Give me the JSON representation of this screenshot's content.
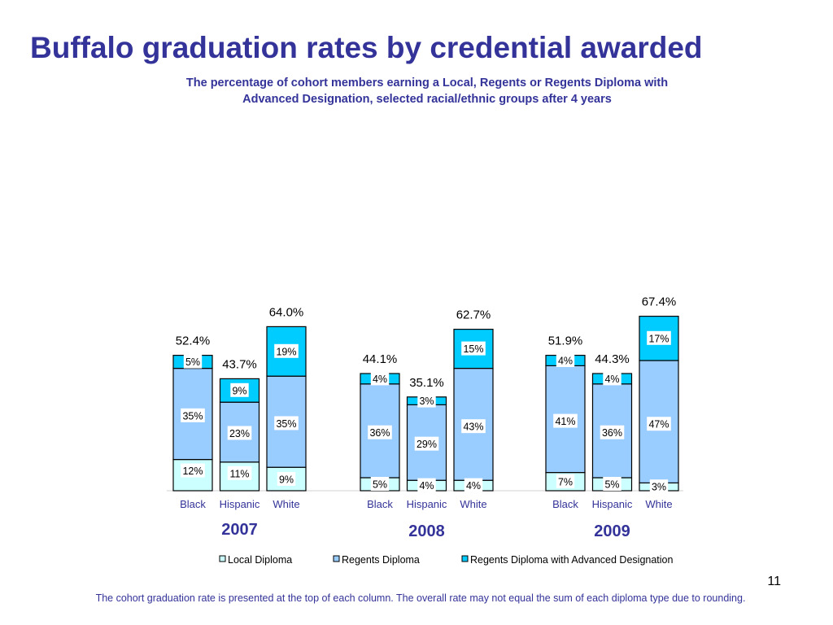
{
  "title": "Buffalo graduation rates by credential awarded",
  "subtitle_lines": [
    "The percentage of cohort members earning a Local, Regents or Regents Diploma with",
    "Advanced Designation, selected racial/ethnic groups after 4 years"
  ],
  "page_number": "11",
  "footnote": "The cohort graduation rate is presented at the top of each column. The overall rate may not equal the sum of each diploma type due to rounding.",
  "colors": {
    "local": "#ccffff",
    "regents": "#99ccff",
    "advanced": "#00ccff",
    "year_label": "#333399",
    "text": "#333399"
  },
  "chart_data": {
    "type": "bar",
    "stacked": true,
    "ylim": [
      0,
      100
    ],
    "groups": [
      "2007",
      "2008",
      "2009"
    ],
    "categories": [
      "Black",
      "Hispanic",
      "White"
    ],
    "series": [
      {
        "name": "Local Diploma",
        "values": [
          [
            12,
            11,
            9
          ],
          [
            5,
            4,
            4
          ],
          [
            7,
            5,
            3
          ]
        ],
        "labels": [
          [
            "12%",
            "11%",
            "9%"
          ],
          [
            "5%",
            "4%",
            "4%"
          ],
          [
            "7%",
            "5%",
            "3%"
          ]
        ]
      },
      {
        "name": "Regents Diploma",
        "values": [
          [
            35,
            23,
            35
          ],
          [
            36,
            29,
            43
          ],
          [
            41,
            36,
            47
          ]
        ],
        "labels": [
          [
            "35%",
            "23%",
            "35%"
          ],
          [
            "36%",
            "29%",
            "43%"
          ],
          [
            "41%",
            "36%",
            "47%"
          ]
        ]
      },
      {
        "name": "Regents Diploma with Advanced Designation",
        "values": [
          [
            5,
            9,
            19
          ],
          [
            4,
            3,
            15
          ],
          [
            4,
            4,
            17
          ]
        ],
        "labels": [
          [
            "5%",
            "9%",
            "19%"
          ],
          [
            "4%",
            "3%",
            "15%"
          ],
          [
            "4%",
            "4%",
            "17%"
          ]
        ]
      }
    ],
    "totals": [
      [
        "52.4%",
        "43.7%",
        "64.0%"
      ],
      [
        "44.1%",
        "35.1%",
        "62.7%"
      ],
      [
        "51.9%",
        "44.3%",
        "67.4%"
      ]
    ],
    "legend_position": "bottom"
  }
}
